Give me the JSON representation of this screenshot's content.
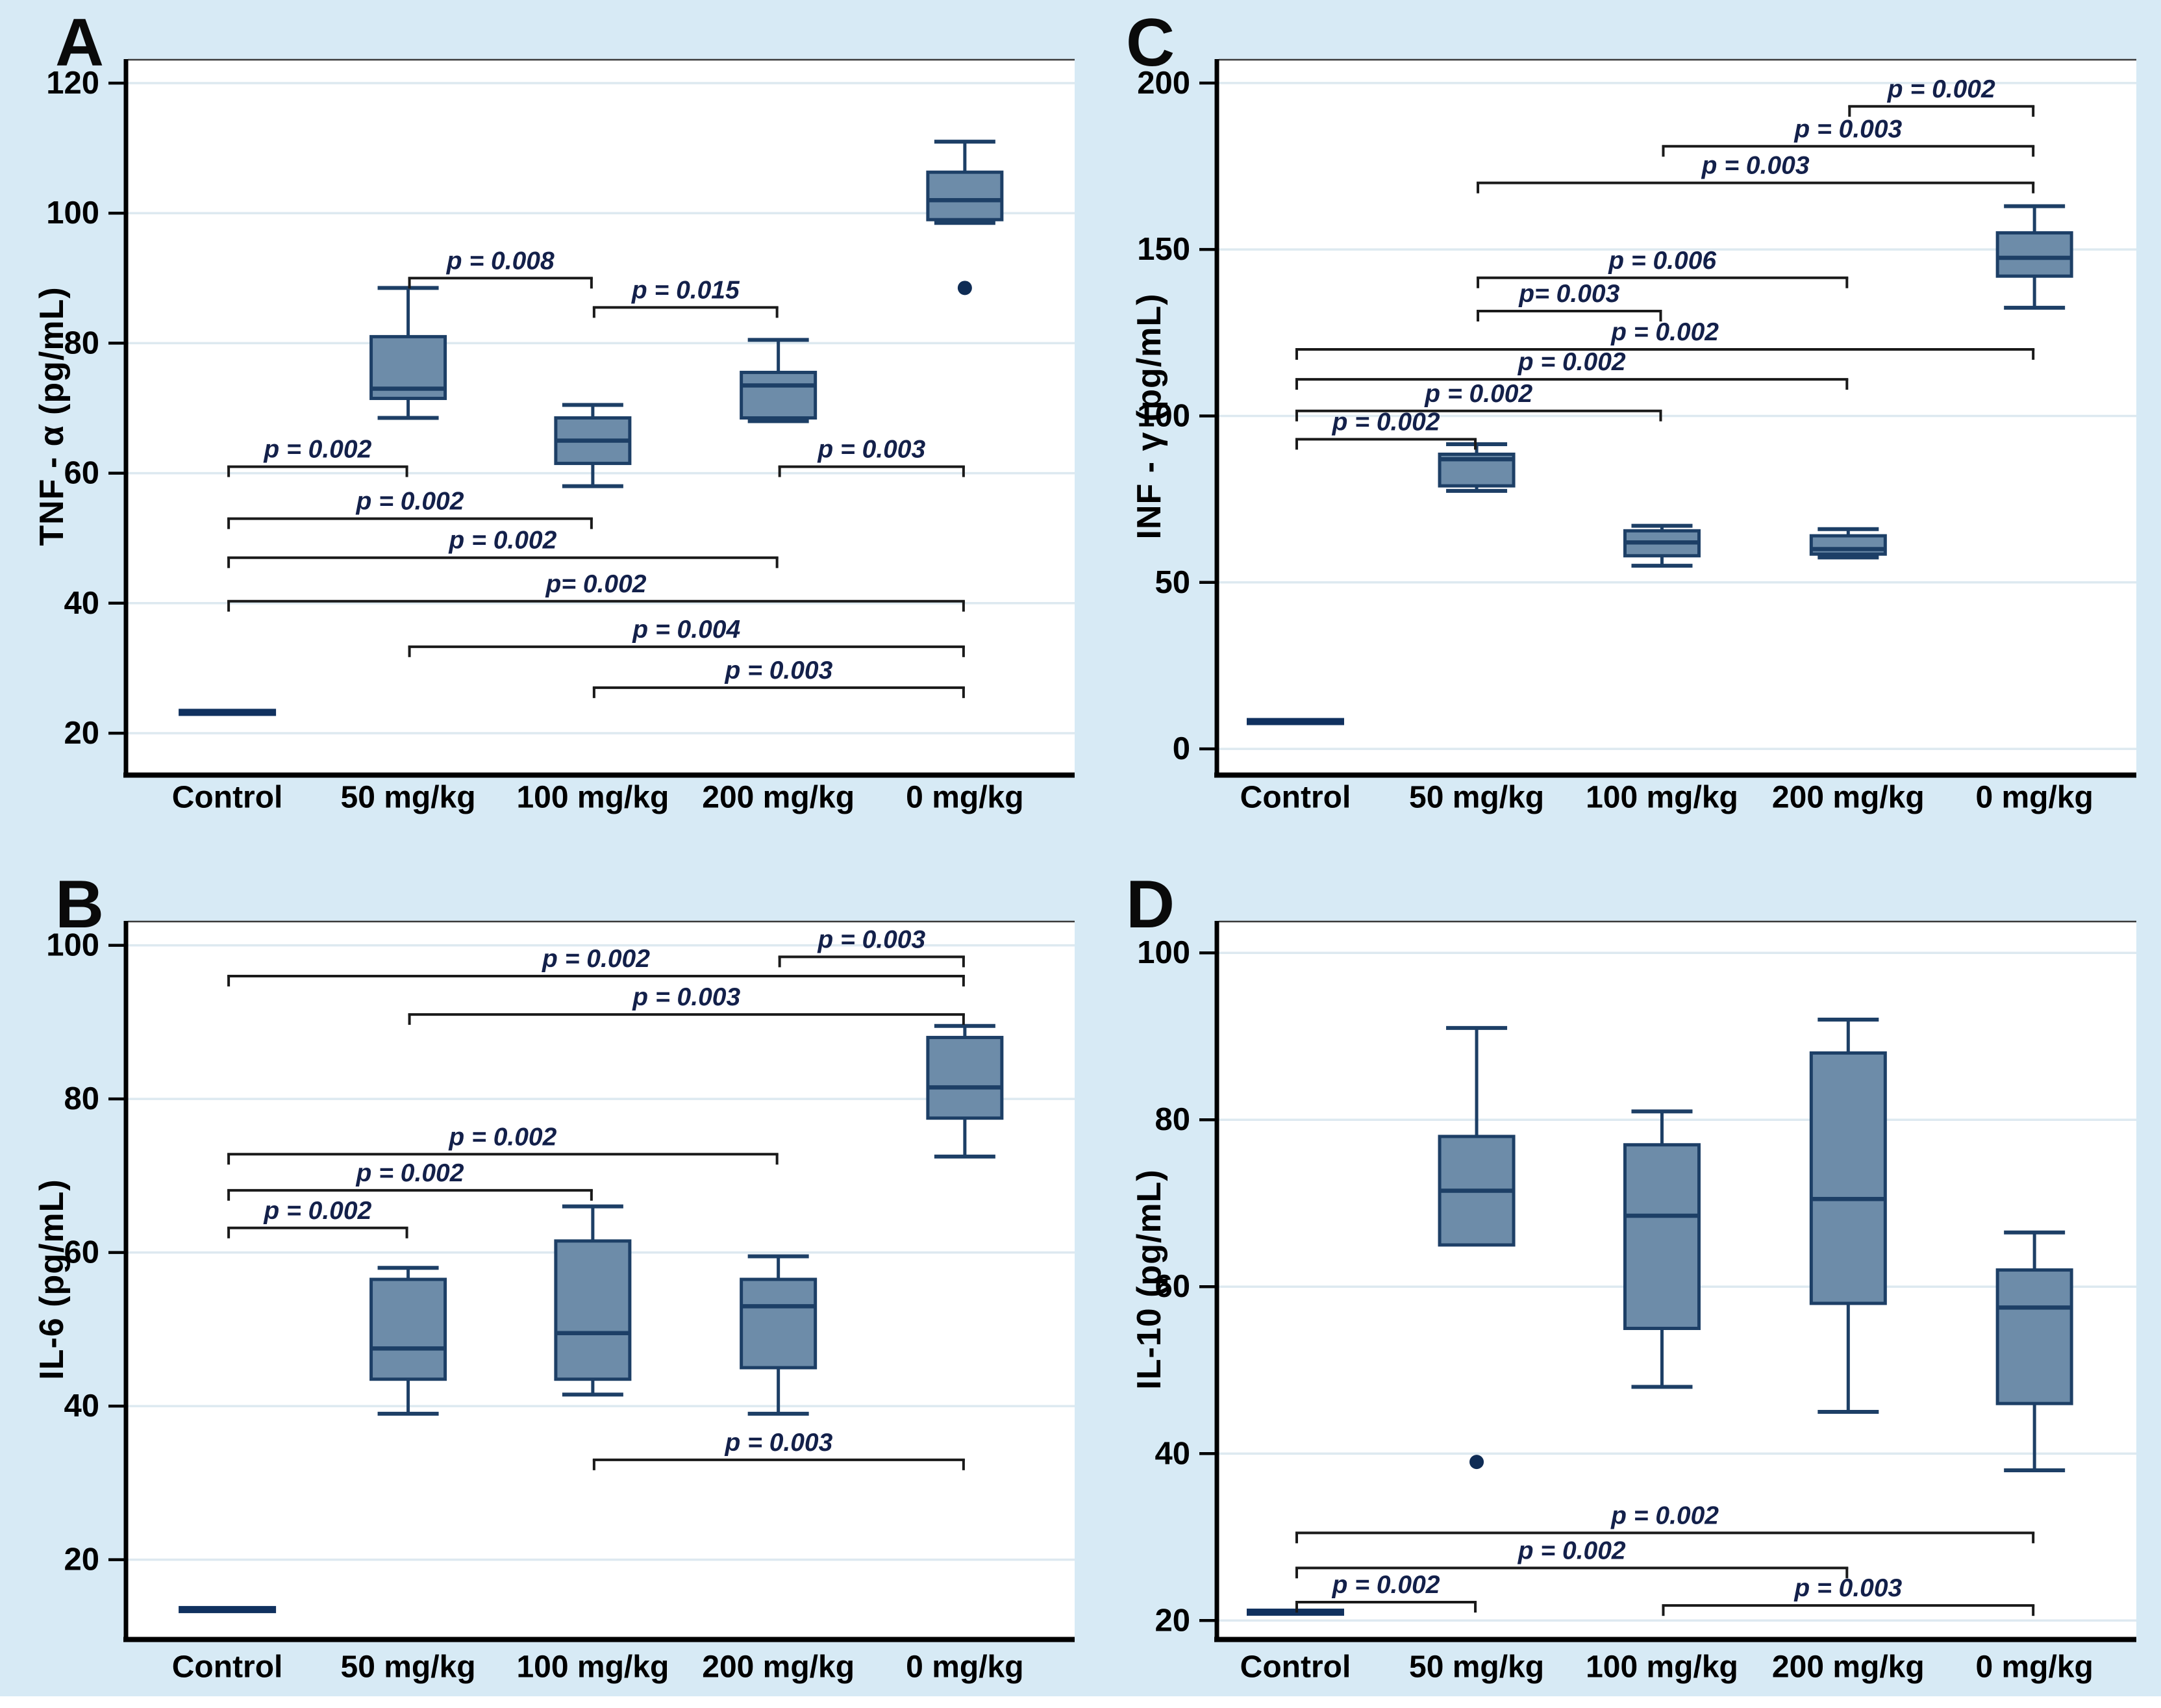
{
  "figure": {
    "background_color": "#d7eaf5",
    "plot_background": "#ffffff",
    "gridline_color": "#dde9f0",
    "frame_top_color": "#3a3a3a",
    "axis_color": "#000000",
    "box_fill": "#6d8ca9",
    "box_border": "#1d3f66",
    "whisker_color": "#1d3f66",
    "median_color": "#1d3f66",
    "control_bar_color": "#10315f",
    "outlier_color": "#0f2c55",
    "bracket_color": "#1a1a1a",
    "p_label_color": "#13204a",
    "tick_label_color": "#000000"
  },
  "chart_data": [
    {
      "panel_label": "A",
      "type": "boxplot",
      "ylabel": "TNF - α (pg/mL)",
      "categories": [
        "Control",
        "50 mg/kg",
        "100 mg/kg",
        "200 mg/kg",
        "0 mg/kg"
      ],
      "yticks": [
        20,
        40,
        60,
        80,
        100,
        120
      ],
      "ylim": [
        13.9,
        123.6
      ],
      "grid": true,
      "boxes": [
        {
          "category": "Control",
          "median_only": true,
          "median": 23.2
        },
        {
          "category": "50 mg/kg",
          "low": 68.5,
          "q1": 71.5,
          "median": 73,
          "q3": 81,
          "high": 88.5
        },
        {
          "category": "100 mg/kg",
          "low": 58,
          "q1": 61.5,
          "median": 65,
          "q3": 68.5,
          "high": 70.5
        },
        {
          "category": "200 mg/kg",
          "low": 68,
          "q1": 68.5,
          "median": 73.5,
          "q3": 75.5,
          "high": 80.5
        },
        {
          "category": "0 mg/kg",
          "low": 98.5,
          "q1": 99,
          "median": 102,
          "q3": 106.3,
          "high": 111,
          "outliers": [
            88.5
          ]
        }
      ],
      "brackets": [
        {
          "from": 0,
          "to": 1,
          "y": 61,
          "label": "p = 0.002"
        },
        {
          "from": 1,
          "to": 2,
          "y": 90,
          "label": "p = 0.008"
        },
        {
          "from": 2,
          "to": 3,
          "y": 85.5,
          "label": "p = 0.015"
        },
        {
          "from": 3,
          "to": 4,
          "y": 61,
          "label": "p = 0.003"
        },
        {
          "from": 0,
          "to": 2,
          "y": 53,
          "label": "p = 0.002"
        },
        {
          "from": 0,
          "to": 3,
          "y": 47,
          "label": "p = 0.002"
        },
        {
          "from": 0,
          "to": 4,
          "y": 40.3,
          "label": "p= 0.002"
        },
        {
          "from": 1,
          "to": 4,
          "y": 33.3,
          "label": "p = 0.004"
        },
        {
          "from": 2,
          "to": 4,
          "y": 27,
          "label": "p = 0.003"
        }
      ]
    },
    {
      "panel_label": "B",
      "type": "boxplot",
      "ylabel": "IL-6 (pg/mL)",
      "categories": [
        "Control",
        "50 mg/kg",
        "100 mg/kg",
        "200 mg/kg",
        "0 mg/kg"
      ],
      "yticks": [
        20,
        40,
        60,
        80,
        100
      ],
      "ylim": [
        9.9,
        103.1
      ],
      "grid": true,
      "boxes": [
        {
          "category": "Control",
          "median_only": true,
          "median": 13.5
        },
        {
          "category": "50 mg/kg",
          "low": 39,
          "q1": 43.5,
          "median": 47.5,
          "q3": 56.5,
          "high": 58
        },
        {
          "category": "100 mg/kg",
          "low": 41.5,
          "q1": 43.5,
          "median": 49.5,
          "q3": 61.5,
          "high": 66
        },
        {
          "category": "200 mg/kg",
          "low": 39,
          "q1": 45,
          "median": 53,
          "q3": 56.5,
          "high": 59.5
        },
        {
          "category": "0 mg/kg",
          "low": 72.5,
          "q1": 77.5,
          "median": 81.5,
          "q3": 88,
          "high": 89.5
        }
      ],
      "brackets": [
        {
          "from": 0,
          "to": 1,
          "y": 63.2,
          "label": "p = 0.002"
        },
        {
          "from": 0,
          "to": 2,
          "y": 68.1,
          "label": "p = 0.002"
        },
        {
          "from": 0,
          "to": 3,
          "y": 72.8,
          "label": "p = 0.002"
        },
        {
          "from": 1,
          "to": 4,
          "y": 91,
          "label": "p = 0.003"
        },
        {
          "from": 0,
          "to": 4,
          "y": 96,
          "label": "p = 0.002"
        },
        {
          "from": 3,
          "to": 4,
          "y": 98.5,
          "label": "p = 0.003"
        },
        {
          "from": 2,
          "to": 4,
          "y": 33,
          "label": "p = 0.003"
        }
      ]
    },
    {
      "panel_label": "C",
      "type": "boxplot",
      "ylabel": "INF - γ (pg/mL)",
      "categories": [
        "Control",
        "50 mg/kg",
        "100 mg/kg",
        "200 mg/kg",
        "0 mg/kg"
      ],
      "yticks": [
        0,
        50,
        100,
        150,
        200
      ],
      "ylim": [
        -7.2,
        207
      ],
      "grid": true,
      "boxes": [
        {
          "category": "Control",
          "median_only": true,
          "median": 8.2
        },
        {
          "category": "50 mg/kg",
          "low": 77.5,
          "q1": 79,
          "median": 87,
          "q3": 88.5,
          "high": 91.5
        },
        {
          "category": "100 mg/kg",
          "low": 55,
          "q1": 58,
          "median": 62,
          "q3": 65.5,
          "high": 67
        },
        {
          "category": "200 mg/kg",
          "low": 57.5,
          "q1": 58.5,
          "median": 60,
          "q3": 64,
          "high": 66
        },
        {
          "category": "0 mg/kg",
          "low": 132.5,
          "q1": 142,
          "median": 147.5,
          "q3": 155,
          "high": 163
        }
      ],
      "brackets": [
        {
          "from": 0,
          "to": 1,
          "y": 93,
          "label": "p = 0.002"
        },
        {
          "from": 0,
          "to": 2,
          "y": 101.5,
          "label": "p = 0.002"
        },
        {
          "from": 0,
          "to": 3,
          "y": 111,
          "label": "p = 0.002"
        },
        {
          "from": 0,
          "to": 4,
          "y": 120,
          "label": "p = 0.002"
        },
        {
          "from": 1,
          "to": 2,
          "y": 131.5,
          "label": "p= 0.003"
        },
        {
          "from": 1,
          "to": 3,
          "y": 141.5,
          "label": "p = 0.006"
        },
        {
          "from": 1,
          "to": 4,
          "y": 170,
          "label": "p = 0.003"
        },
        {
          "from": 2,
          "to": 4,
          "y": 181,
          "label": "p = 0.003"
        },
        {
          "from": 3,
          "to": 4,
          "y": 193,
          "label": "p = 0.002"
        }
      ]
    },
    {
      "panel_label": "D",
      "type": "boxplot",
      "ylabel": "IL-10 (pg/mL)",
      "categories": [
        "Control",
        "50 mg/kg",
        "100 mg/kg",
        "200 mg/kg",
        "0 mg/kg"
      ],
      "yticks": [
        20,
        40,
        60,
        80,
        100
      ],
      "ylim": [
        18,
        103.75
      ],
      "grid": true,
      "boxes": [
        {
          "category": "Control",
          "median_only": true,
          "median": 21
        },
        {
          "category": "50 mg/kg",
          "low": 65,
          "q1": 65,
          "median": 71.5,
          "q3": 78,
          "high": 91,
          "outliers": [
            39
          ]
        },
        {
          "category": "100 mg/kg",
          "low": 48,
          "q1": 55,
          "median": 68.5,
          "q3": 77,
          "high": 81
        },
        {
          "category": "200 mg/kg",
          "low": 45,
          "q1": 58,
          "median": 70.5,
          "q3": 88,
          "high": 92
        },
        {
          "category": "0 mg/kg",
          "low": 38,
          "q1": 46,
          "median": 57.5,
          "q3": 62,
          "high": 66.5
        }
      ],
      "brackets": [
        {
          "from": 0,
          "to": 1,
          "y": 22.2,
          "label": "p = 0.002"
        },
        {
          "from": 0,
          "to": 3,
          "y": 26.3,
          "label": "p = 0.002"
        },
        {
          "from": 0,
          "to": 4,
          "y": 30.5,
          "label": "p = 0.002"
        },
        {
          "from": 2,
          "to": 4,
          "y": 21.8,
          "label": "p = 0.003"
        }
      ]
    }
  ]
}
